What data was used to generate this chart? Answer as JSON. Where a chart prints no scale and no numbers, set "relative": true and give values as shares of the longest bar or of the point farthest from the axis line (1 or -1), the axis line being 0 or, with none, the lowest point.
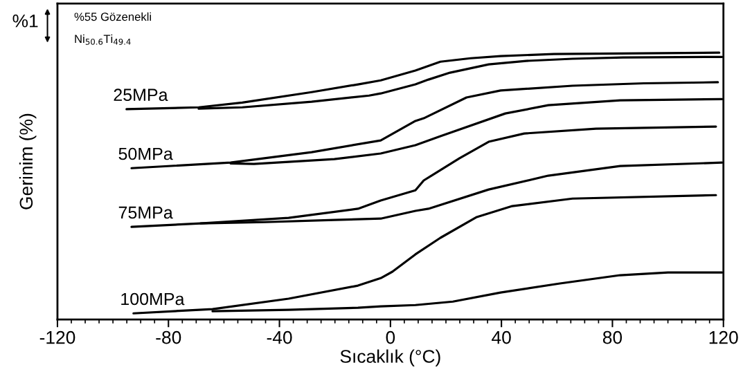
{
  "chart_data": {
    "type": "line",
    "xlabel": "Sıcaklık (°C)",
    "ylabel": "Gerinim (%)",
    "relative": true,
    "xlim": [
      -120,
      120
    ],
    "xticks": [
      -120,
      -80,
      -40,
      0,
      40,
      80,
      120
    ],
    "annotations": [
      "%1",
      "%55 Gözenekli",
      "Ni$_{50.6}$Ti$_{49.4}$"
    ],
    "series": [
      {
        "name": "25MPa",
        "color": "#000000",
        "x": [
          -95.1,
          -69.1,
          -53.4,
          -28.4,
          -11.7,
          -3.5,
          9.0,
          18.0,
          28.9,
          39.7,
          58.9,
          82.8,
          118.5
        ],
        "values": [
          0.788,
          0.795,
          0.813,
          0.852,
          0.881,
          0.896,
          0.933,
          0.966,
          0.979,
          0.987,
          0.995,
          0.997,
          1.0
        ]
      },
      {
        "color": "#000000",
        "x": [
          119.5,
          83.8,
          65.6,
          48.9,
          35.4,
          21.5,
          13.7,
          9.0,
          -3.5,
          -7.7,
          -28.4,
          -53.4,
          -69.1
        ],
        "values": [
          0.984,
          0.982,
          0.977,
          0.969,
          0.956,
          0.925,
          0.899,
          0.881,
          0.847,
          0.839,
          0.816,
          0.795,
          0.79
        ]
      },
      {
        "name": "50MPa",
        "color": "#000000",
        "x": [
          -93.3,
          -57.6,
          -28.4,
          -3.5,
          9.0,
          12.0,
          27.4,
          39.7,
          65.6,
          91.3,
          118.0
        ],
        "values": [
          0.567,
          0.588,
          0.627,
          0.671,
          0.744,
          0.754,
          0.832,
          0.858,
          0.876,
          0.885,
          0.889
        ]
      },
      {
        "color": "#000000",
        "x": [
          119.5,
          82.8,
          56.9,
          41.4,
          18.0,
          9.0,
          -3.5,
          -20.2,
          -49.2,
          -57.6
        ],
        "values": [
          0.826,
          0.821,
          0.803,
          0.772,
          0.687,
          0.653,
          0.622,
          0.601,
          0.583,
          0.585
        ]
      },
      {
        "name": "75MPa",
        "color": "#000000",
        "x": [
          -93.3,
          -68.4,
          -36.7,
          -11.7,
          -3.5,
          9.0,
          12.0,
          24.9,
          35.4,
          48.2,
          74.1,
          117.3
        ],
        "values": [
          0.347,
          0.36,
          0.381,
          0.415,
          0.446,
          0.484,
          0.521,
          0.604,
          0.666,
          0.697,
          0.715,
          0.723
        ]
      },
      {
        "color": "#000000",
        "x": [
          119.5,
          82.8,
          56.9,
          35.4,
          13.7,
          9.0,
          -3.5,
          -20.2,
          -45.2,
          -68.4
        ],
        "values": [
          0.588,
          0.575,
          0.539,
          0.487,
          0.415,
          0.407,
          0.378,
          0.373,
          0.365,
          0.36
        ]
      },
      {
        "name": "100MPa",
        "color": "#000000",
        "x": [
          -92.6,
          -64.1,
          -36.7,
          -11.7,
          -3.5,
          0.7,
          9.0,
          18.0,
          30.9,
          43.9,
          65.6,
          117.3
        ],
        "values": [
          0.023,
          0.039,
          0.078,
          0.127,
          0.155,
          0.179,
          0.244,
          0.306,
          0.383,
          0.425,
          0.453,
          0.466
        ]
      },
      {
        "color": "#000000",
        "x": [
          119.5,
          100.0,
          82.8,
          61.1,
          39.7,
          22.5,
          9.0,
          -3.5,
          -11.7,
          -36.7,
          -64.1
        ],
        "values": [
          0.176,
          0.176,
          0.166,
          0.135,
          0.101,
          0.067,
          0.054,
          0.049,
          0.044,
          0.036,
          0.031
        ]
      }
    ]
  }
}
